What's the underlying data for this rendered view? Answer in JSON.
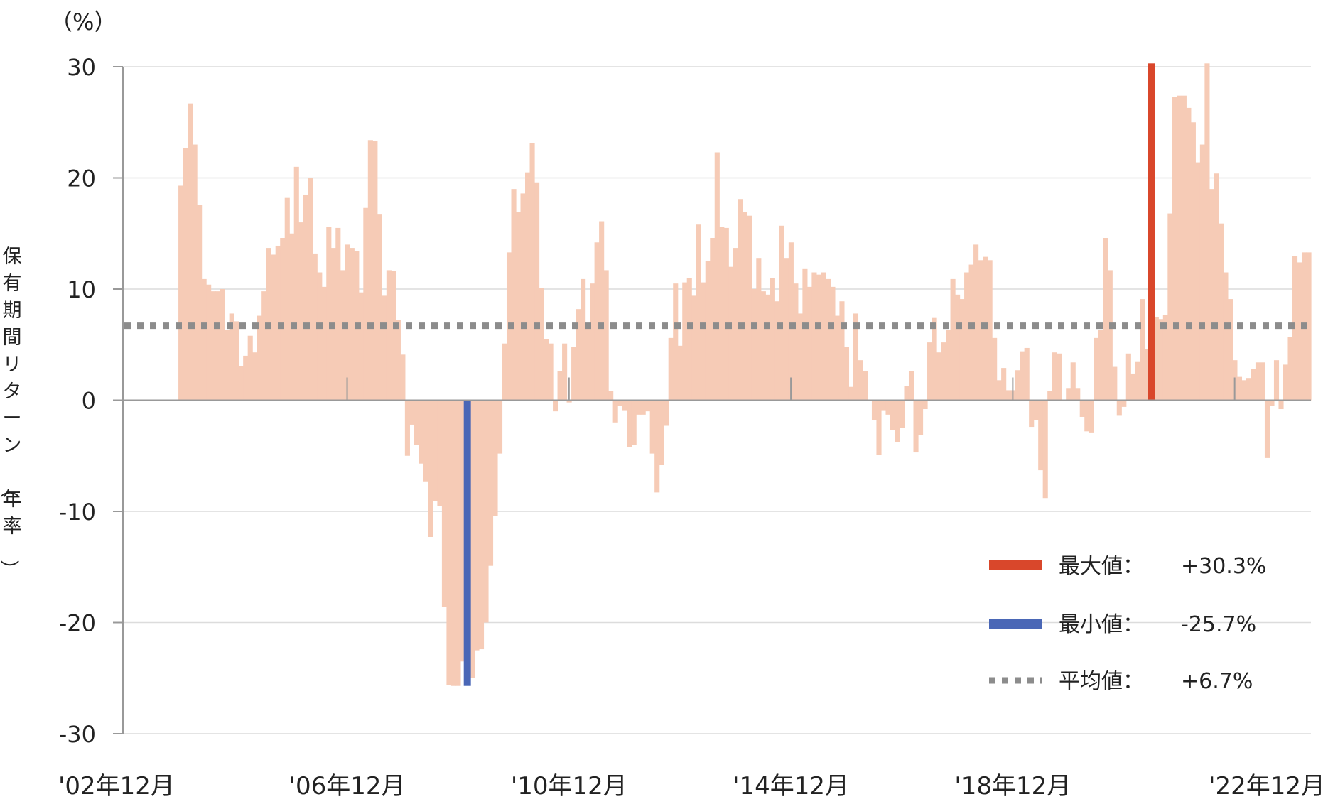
{
  "chart_data": {
    "type": "bar",
    "unit_label": "（%）",
    "ylabel": "保有期間リターン（年率）",
    "ylim": [
      -30,
      30
    ],
    "yticks": [
      30,
      20,
      10,
      0,
      -10,
      -20,
      -30
    ],
    "x_tick_labels": [
      "'02年12月",
      "'06年12月",
      "'10年12月",
      "'14年12月",
      "'18年12月",
      "'22年12月"
    ],
    "x_ticks": [
      "2002-12",
      "2006-12",
      "2010-12",
      "2014-12",
      "2018-12",
      "2022-12"
    ],
    "x_start": "2002-12",
    "bar_color": "#f6cbb6",
    "grid": true,
    "series": [
      {
        "values": [
          null,
          null,
          null,
          null,
          null,
          null,
          null,
          null,
          null,
          null,
          null,
          null,
          19.3,
          22.7,
          26.7,
          23,
          17.6,
          10.9,
          10.4,
          9.8,
          9.8,
          10,
          6.3,
          7.8,
          7.1,
          3.1,
          4,
          5.8,
          4.3,
          7.6,
          9.8,
          13.7,
          13.1,
          13.9,
          14.6,
          18.2,
          15,
          21,
          16,
          18.5,
          20,
          13.2,
          11.5,
          10.2,
          15.6,
          13.7,
          15.5,
          11.7,
          14,
          13.7,
          13.4,
          9.7,
          17.3,
          23.4,
          23.3,
          16.7,
          9.4,
          11.7,
          11.6,
          7.2,
          4.1,
          -5,
          -2.2,
          -4,
          -5.7,
          -7.3,
          -12.3,
          -9.1,
          -9.5,
          -18.6,
          -25.6,
          -25.7,
          -25.7,
          -23.5,
          -22.4,
          -25,
          -22.5,
          -22.4,
          -20,
          -14.9,
          -10.4,
          -4.8,
          5.1,
          13.3,
          19,
          16.9,
          18.6,
          20.5,
          23.1,
          19.6,
          10.1,
          5.5,
          5.1,
          -1,
          2.6,
          5.1,
          -0.2,
          4.8,
          8.2,
          10.9,
          6.9,
          10.5,
          14.2,
          16.1,
          11.7,
          0.8,
          -2,
          -0.5,
          -0.9,
          -4.2,
          -4,
          -1.3,
          -1.3,
          -1,
          -4.8,
          -8.3,
          -5.8,
          -2.3,
          5.6,
          10.5,
          4.9,
          10.6,
          11,
          9.4,
          15.8,
          10.6,
          12.5,
          14.6,
          22.3,
          15.6,
          15.5,
          12,
          13.7,
          18.1,
          16.9,
          16.6,
          10,
          12.8,
          9.8,
          9.5,
          11,
          8.9,
          15.7,
          12.8,
          14.2,
          10.5,
          7.8,
          11.8,
          10.2,
          11.5,
          11.3,
          11.5,
          10.9,
          10.2,
          7.6,
          8.9,
          4.8,
          1.2,
          7.8,
          3.6,
          2.6,
          0,
          -1.8,
          -4.9,
          -0.9,
          -1.3,
          -2.7,
          -3.8,
          -2.5,
          1.3,
          2.6,
          -4.7,
          -3.1,
          -0.8,
          5.2,
          7.4,
          4.3,
          5.2,
          6.3,
          10.9,
          9.5,
          9.1,
          11.5,
          12.2,
          14,
          12.6,
          12.9,
          12.6,
          5.6,
          1.8,
          2.9,
          0.9,
          0.9,
          2.7,
          4.4,
          4.7,
          -2.4,
          -1.8,
          -6.3,
          -8.8,
          0.8,
          4.3,
          4.2,
          0,
          1.1,
          3.4,
          1.1,
          -1.5,
          -2.8,
          -2.9,
          5.6,
          6.3,
          14.6,
          11.7,
          3,
          -1.4,
          -0.6,
          4.2,
          2.4,
          3.5,
          9.1,
          4.6,
          1.2,
          7.5,
          7.3,
          7.7,
          16.8,
          27.3,
          27.4,
          27.4,
          26.3,
          25,
          21.4,
          23,
          30.3,
          19,
          20.4,
          15.9,
          11.5,
          9.1,
          3.6,
          2.1,
          1.8,
          2,
          2.8,
          3.4,
          3.4,
          -5.2,
          -0.5,
          3.6,
          -0.8,
          3.2,
          5.7,
          13,
          12.4,
          13.3,
          13.3
        ]
      }
    ],
    "max": {
      "date": "2021-06",
      "value": 30.3,
      "color": "#d9472b"
    },
    "min": {
      "date": "2009-02",
      "value": -25.7,
      "color": "#4a67b6"
    },
    "average": {
      "value": 6.7,
      "color": "#8c8c8c"
    },
    "legend": {
      "position": "bottom-right",
      "items": [
        {
          "label": "最大値：",
          "value": "+30.3%",
          "style": "max"
        },
        {
          "label": "最小値：",
          "value": "-25.7%",
          "style": "min"
        },
        {
          "label": "平均値：",
          "value": "+6.7%",
          "style": "avg"
        }
      ]
    }
  }
}
